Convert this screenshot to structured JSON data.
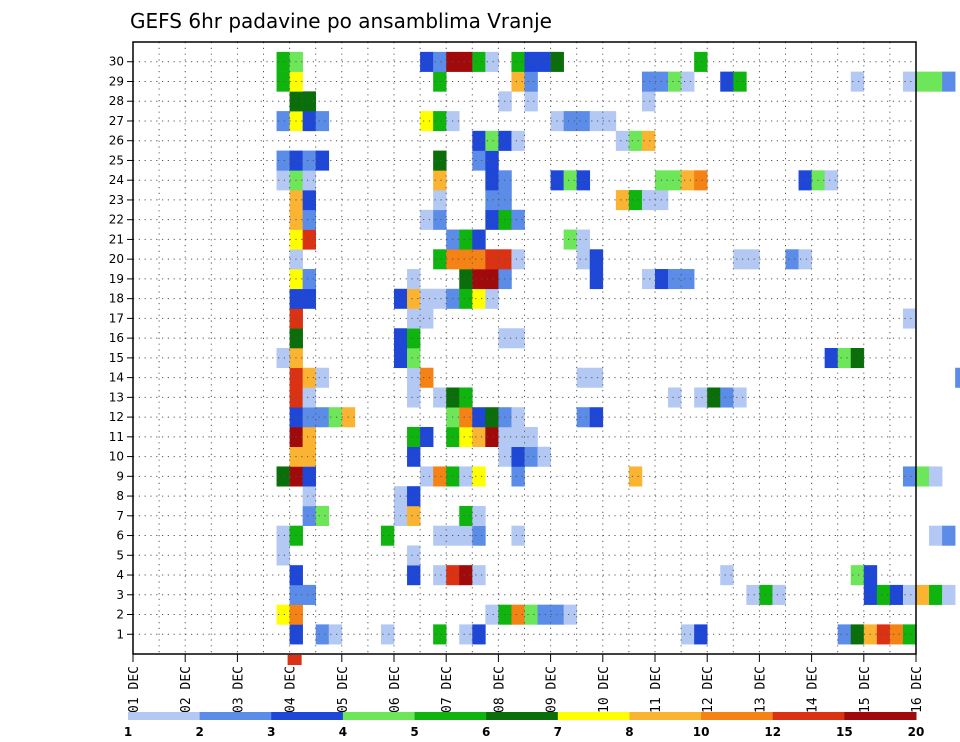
{
  "chart_data": {
    "type": "heatmap",
    "title": "GEFS 6hr padavine po ansamblima Vranje",
    "x_ticks": [
      "01 DEC",
      "02 DEC",
      "03 DEC",
      "04 DEC",
      "05 DEC",
      "06 DEC",
      "07 DEC",
      "08 DEC",
      "09 DEC",
      "10 DEC",
      "11 DEC",
      "12 DEC",
      "13 DEC",
      "14 DEC",
      "15 DEC",
      "16 DEC"
    ],
    "y_ticks": [
      "1",
      "2",
      "3",
      "4",
      "5",
      "6",
      "7",
      "8",
      "9",
      "10",
      "11",
      "12",
      "13",
      "14",
      "15",
      "16",
      "17",
      "18",
      "19",
      "20",
      "21",
      "22",
      "23",
      "24",
      "25",
      "26",
      "27",
      "28",
      "29",
      "30"
    ],
    "ylim": [
      0,
      30
    ],
    "steps_per_day": 4,
    "grid": true,
    "colorbar": {
      "labels": [
        "1",
        "2",
        "3",
        "4",
        "5",
        "6",
        "7",
        "8",
        "10",
        "12",
        "15",
        "20"
      ],
      "colors": [
        "#b4c8f4",
        "#5a8ce8",
        "#1e46d7",
        "#6ee65a",
        "#0fb40f",
        "#0a6e0a",
        "#ffff00",
        "#fab432",
        "#f58214",
        "#dc3214",
        "#a00a0a"
      ]
    },
    "members": [
      {
        "member": 1,
        "cells": [
          [
            3.0,
            3
          ],
          [
            3.5,
            2
          ],
          [
            3.75,
            1
          ],
          [
            4.75,
            1
          ],
          [
            5.75,
            5
          ],
          [
            6.25,
            1
          ],
          [
            6.5,
            3
          ],
          [
            10.5,
            1
          ],
          [
            10.75,
            3
          ],
          [
            13.5,
            2
          ],
          [
            13.75,
            6
          ],
          [
            14.0,
            8
          ],
          [
            14.25,
            10
          ],
          [
            14.5,
            9
          ],
          [
            14.75,
            5
          ]
        ]
      },
      {
        "member": 2,
        "cells": [
          [
            2.75,
            7
          ],
          [
            3.0,
            9
          ],
          [
            6.75,
            1
          ],
          [
            7.0,
            5
          ],
          [
            7.25,
            9
          ],
          [
            7.5,
            4
          ],
          [
            7.75,
            2
          ],
          [
            8.0,
            2
          ],
          [
            8.25,
            1
          ]
        ]
      },
      {
        "member": 3,
        "cells": [
          [
            3.0,
            2
          ],
          [
            3.25,
            2
          ],
          [
            11.75,
            1
          ],
          [
            12.0,
            5
          ],
          [
            12.25,
            1
          ],
          [
            14.0,
            3
          ],
          [
            14.25,
            5
          ],
          [
            14.5,
            3
          ],
          [
            14.75,
            1
          ],
          [
            15.0,
            8
          ],
          [
            15.25,
            5
          ],
          [
            15.5,
            1
          ]
        ]
      },
      {
        "member": 4,
        "cells": [
          [
            3.0,
            3
          ],
          [
            5.25,
            3
          ],
          [
            5.75,
            1
          ],
          [
            6.0,
            10
          ],
          [
            6.25,
            11
          ],
          [
            6.5,
            1
          ],
          [
            11.25,
            1
          ],
          [
            13.75,
            4
          ],
          [
            14.0,
            3
          ]
        ]
      },
      {
        "member": 5,
        "cells": [
          [
            2.75,
            1
          ],
          [
            5.25,
            1
          ]
        ]
      },
      {
        "member": 6,
        "cells": [
          [
            2.75,
            1
          ],
          [
            3.0,
            5
          ],
          [
            4.75,
            5
          ],
          [
            5.75,
            1
          ],
          [
            6.0,
            1
          ],
          [
            6.25,
            1
          ],
          [
            6.5,
            2
          ],
          [
            7.25,
            1
          ],
          [
            15.25,
            1
          ],
          [
            15.5,
            2
          ]
        ]
      },
      {
        "member": 7,
        "cells": [
          [
            3.25,
            2
          ],
          [
            3.5,
            4
          ],
          [
            5.0,
            1
          ],
          [
            5.25,
            8
          ],
          [
            6.25,
            5
          ],
          [
            6.5,
            1
          ]
        ]
      },
      {
        "member": 8,
        "cells": [
          [
            3.25,
            1
          ],
          [
            5.0,
            1
          ],
          [
            5.25,
            3
          ]
        ]
      },
      {
        "member": 9,
        "cells": [
          [
            2.75,
            6
          ],
          [
            3.0,
            11
          ],
          [
            3.25,
            3
          ],
          [
            5.5,
            1
          ],
          [
            5.75,
            9
          ],
          [
            6.0,
            5
          ],
          [
            6.25,
            1
          ],
          [
            6.5,
            7
          ],
          [
            7.25,
            2
          ],
          [
            9.5,
            8
          ],
          [
            14.75,
            2
          ],
          [
            15.0,
            4
          ],
          [
            15.25,
            1
          ]
        ]
      },
      {
        "member": 10,
        "cells": [
          [
            3.0,
            8
          ],
          [
            3.25,
            8
          ],
          [
            5.25,
            3
          ],
          [
            7.0,
            1
          ],
          [
            7.25,
            3
          ],
          [
            7.5,
            2
          ],
          [
            7.75,
            1
          ]
        ]
      },
      {
        "member": 11,
        "cells": [
          [
            3.0,
            11
          ],
          [
            3.25,
            8
          ],
          [
            5.25,
            5
          ],
          [
            5.5,
            3
          ],
          [
            6.0,
            5
          ],
          [
            6.25,
            7
          ],
          [
            6.5,
            8
          ],
          [
            6.75,
            11
          ],
          [
            7.0,
            1
          ],
          [
            7.25,
            1
          ],
          [
            7.5,
            1
          ]
        ]
      },
      {
        "member": 12,
        "cells": [
          [
            3.0,
            3
          ],
          [
            3.25,
            2
          ],
          [
            3.5,
            2
          ],
          [
            3.75,
            4
          ],
          [
            4.0,
            8
          ],
          [
            6.0,
            4
          ],
          [
            6.25,
            9
          ],
          [
            6.5,
            3
          ],
          [
            6.75,
            6
          ],
          [
            7.0,
            2
          ],
          [
            7.25,
            1
          ],
          [
            8.5,
            2
          ],
          [
            8.75,
            3
          ]
        ]
      },
      {
        "member": 13,
        "cells": [
          [
            3.0,
            10
          ],
          [
            3.25,
            1
          ],
          [
            5.25,
            1
          ],
          [
            5.75,
            1
          ],
          [
            6.0,
            6
          ],
          [
            6.25,
            5
          ],
          [
            10.25,
            1
          ],
          [
            10.75,
            1
          ],
          [
            11.0,
            6
          ],
          [
            11.25,
            2
          ],
          [
            11.5,
            1
          ]
        ]
      },
      {
        "member": 14,
        "cells": [
          [
            3.0,
            10
          ],
          [
            3.25,
            8
          ],
          [
            3.5,
            1
          ],
          [
            5.25,
            1
          ],
          [
            5.5,
            9
          ],
          [
            8.5,
            1
          ],
          [
            8.75,
            1
          ],
          [
            15.75,
            2
          ]
        ]
      },
      {
        "member": 15,
        "cells": [
          [
            2.75,
            1
          ],
          [
            3.0,
            8
          ],
          [
            5.0,
            3
          ],
          [
            5.25,
            4
          ],
          [
            13.25,
            3
          ],
          [
            13.5,
            4
          ],
          [
            13.75,
            6
          ]
        ]
      },
      {
        "member": 16,
        "cells": [
          [
            3.0,
            6
          ],
          [
            5.0,
            3
          ],
          [
            5.25,
            5
          ],
          [
            7.0,
            1
          ],
          [
            7.25,
            1
          ]
        ]
      },
      {
        "member": 17,
        "cells": [
          [
            3.0,
            10
          ],
          [
            5.25,
            1
          ],
          [
            5.5,
            1
          ],
          [
            14.75,
            1
          ]
        ]
      },
      {
        "member": 18,
        "cells": [
          [
            3.0,
            3
          ],
          [
            3.25,
            3
          ],
          [
            5.0,
            3
          ],
          [
            5.25,
            8
          ],
          [
            5.5,
            1
          ],
          [
            5.75,
            1
          ],
          [
            6.0,
            2
          ],
          [
            6.25,
            5
          ],
          [
            6.5,
            7
          ],
          [
            6.75,
            1
          ]
        ]
      },
      {
        "member": 19,
        "cells": [
          [
            3.0,
            7
          ],
          [
            3.25,
            2
          ],
          [
            5.25,
            1
          ],
          [
            6.25,
            6
          ],
          [
            6.5,
            11
          ],
          [
            6.75,
            11
          ],
          [
            7.0,
            2
          ],
          [
            8.75,
            3
          ],
          [
            9.75,
            1
          ],
          [
            10.0,
            3
          ],
          [
            10.25,
            2
          ],
          [
            10.5,
            2
          ]
        ]
      },
      {
        "member": 20,
        "cells": [
          [
            3.0,
            1
          ],
          [
            5.75,
            5
          ],
          [
            6.0,
            9
          ],
          [
            6.25,
            9
          ],
          [
            6.5,
            9
          ],
          [
            6.75,
            10
          ],
          [
            7.0,
            10
          ],
          [
            7.25,
            1
          ],
          [
            8.5,
            1
          ],
          [
            8.75,
            3
          ],
          [
            11.5,
            1
          ],
          [
            11.75,
            1
          ],
          [
            12.5,
            2
          ],
          [
            12.75,
            1
          ]
        ]
      },
      {
        "member": 21,
        "cells": [
          [
            3.0,
            7
          ],
          [
            3.25,
            10
          ],
          [
            6.0,
            2
          ],
          [
            6.25,
            5
          ],
          [
            6.5,
            3
          ],
          [
            8.25,
            4
          ],
          [
            8.5,
            1
          ]
        ]
      },
      {
        "member": 22,
        "cells": [
          [
            3.0,
            8
          ],
          [
            3.25,
            2
          ],
          [
            5.5,
            1
          ],
          [
            5.75,
            2
          ],
          [
            6.75,
            3
          ],
          [
            7.0,
            5
          ],
          [
            7.25,
            2
          ]
        ]
      },
      {
        "member": 23,
        "cells": [
          [
            3.0,
            8
          ],
          [
            3.25,
            3
          ],
          [
            5.75,
            1
          ],
          [
            6.75,
            2
          ],
          [
            7.0,
            2
          ],
          [
            9.25,
            8
          ],
          [
            9.5,
            5
          ],
          [
            9.75,
            1
          ],
          [
            10.0,
            1
          ]
        ]
      },
      {
        "member": 24,
        "cells": [
          [
            2.75,
            1
          ],
          [
            3.0,
            4
          ],
          [
            3.25,
            1
          ],
          [
            5.75,
            8
          ],
          [
            6.75,
            3
          ],
          [
            7.0,
            2
          ],
          [
            8.0,
            3
          ],
          [
            8.25,
            4
          ],
          [
            8.5,
            3
          ],
          [
            10.0,
            4
          ],
          [
            10.25,
            4
          ],
          [
            10.5,
            8
          ],
          [
            10.75,
            9
          ],
          [
            12.75,
            3
          ],
          [
            13.0,
            4
          ],
          [
            13.25,
            1
          ]
        ]
      },
      {
        "member": 25,
        "cells": [
          [
            2.75,
            2
          ],
          [
            3.0,
            3
          ],
          [
            3.25,
            2
          ],
          [
            3.5,
            3
          ],
          [
            5.75,
            6
          ],
          [
            6.5,
            2
          ],
          [
            6.75,
            3
          ]
        ]
      },
      {
        "member": 26,
        "cells": [
          [
            6.5,
            3
          ],
          [
            6.75,
            4
          ],
          [
            7.0,
            3
          ],
          [
            7.25,
            1
          ],
          [
            9.25,
            1
          ],
          [
            9.5,
            4
          ],
          [
            9.75,
            8
          ]
        ]
      },
      {
        "member": 27,
        "cells": [
          [
            2.75,
            2
          ],
          [
            3.0,
            7
          ],
          [
            3.25,
            3
          ],
          [
            3.5,
            2
          ],
          [
            5.5,
            7
          ],
          [
            5.75,
            5
          ],
          [
            6.0,
            1
          ],
          [
            8.0,
            1
          ],
          [
            8.25,
            2
          ],
          [
            8.5,
            2
          ],
          [
            8.75,
            1
          ],
          [
            9.0,
            1
          ]
        ]
      },
      {
        "member": 28,
        "cells": [
          [
            3.0,
            6
          ],
          [
            3.25,
            6
          ],
          [
            7.0,
            1
          ],
          [
            7.5,
            1
          ],
          [
            9.75,
            1
          ]
        ]
      },
      {
        "member": 29,
        "cells": [
          [
            2.75,
            5
          ],
          [
            3.0,
            7
          ],
          [
            5.75,
            5
          ],
          [
            7.25,
            8
          ],
          [
            7.5,
            2
          ],
          [
            9.75,
            2
          ],
          [
            10.0,
            2
          ],
          [
            10.25,
            4
          ],
          [
            10.5,
            1
          ],
          [
            11.25,
            3
          ],
          [
            11.5,
            5
          ],
          [
            13.75,
            1
          ],
          [
            14.75,
            1
          ],
          [
            15.0,
            4
          ],
          [
            15.25,
            4
          ],
          [
            15.5,
            2
          ]
        ]
      },
      {
        "member": 30,
        "cells": [
          [
            2.75,
            5
          ],
          [
            3.0,
            4
          ],
          [
            5.5,
            3
          ],
          [
            5.75,
            2
          ],
          [
            6.0,
            11
          ],
          [
            6.25,
            11
          ],
          [
            6.5,
            5
          ],
          [
            6.75,
            1
          ],
          [
            7.25,
            5
          ],
          [
            7.5,
            3
          ],
          [
            7.75,
            3
          ],
          [
            8.0,
            6
          ],
          [
            10.75,
            5
          ]
        ]
      }
    ]
  }
}
